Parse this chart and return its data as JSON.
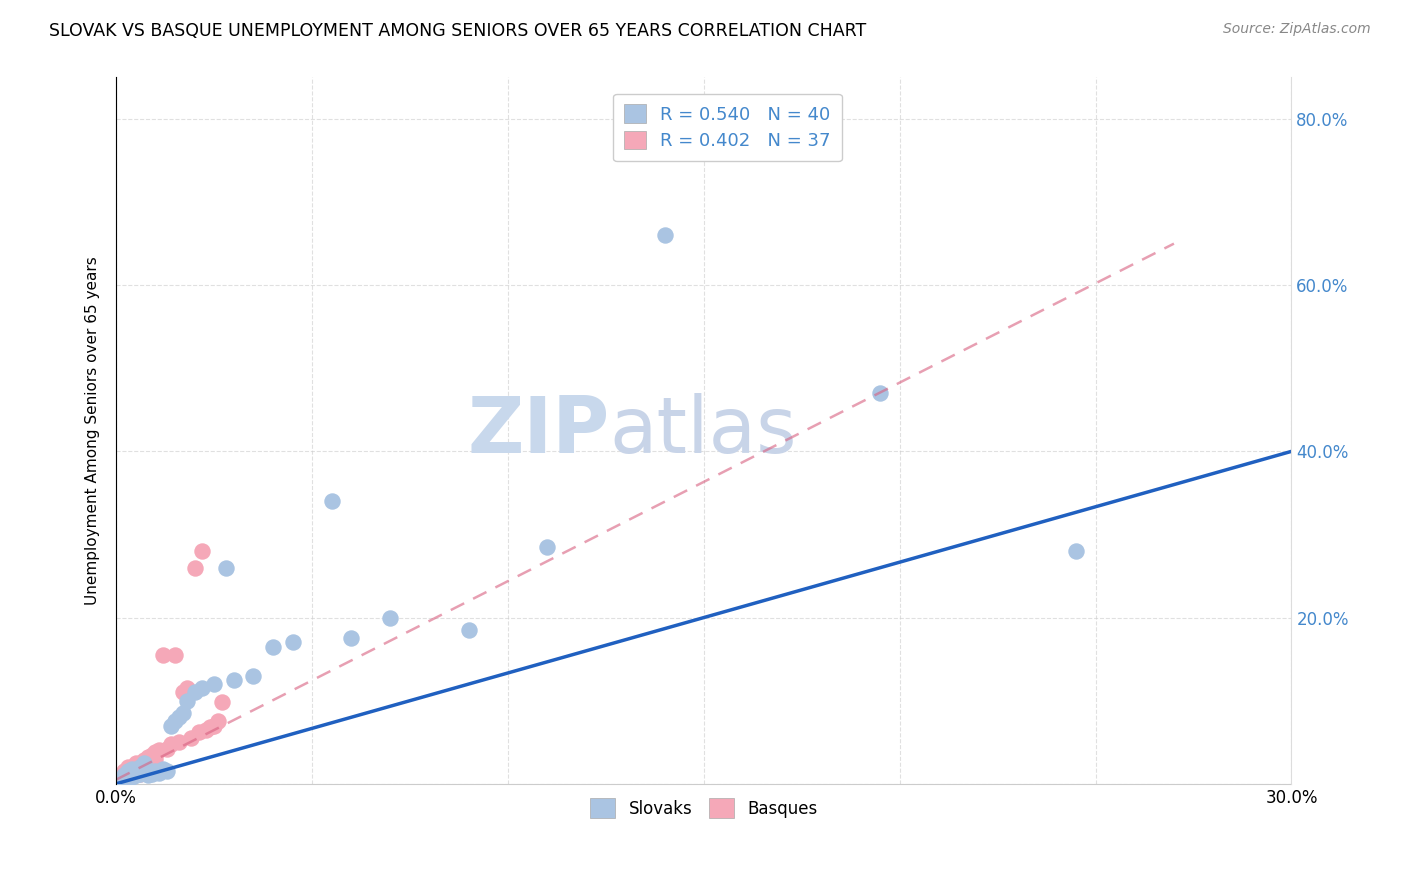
{
  "title": "SLOVAK VS BASQUE UNEMPLOYMENT AMONG SENIORS OVER 65 YEARS CORRELATION CHART",
  "source": "Source: ZipAtlas.com",
  "ylabel": "Unemployment Among Seniors over 65 years",
  "xlim": [
    0.0,
    0.3
  ],
  "ylim": [
    0.0,
    0.85
  ],
  "x_ticks": [
    0.0,
    0.05,
    0.1,
    0.15,
    0.2,
    0.25,
    0.3
  ],
  "x_tick_labels": [
    "0.0%",
    "",
    "",
    "",
    "",
    "",
    "30.0%"
  ],
  "y_ticks": [
    0.0,
    0.2,
    0.4,
    0.6,
    0.8
  ],
  "y_tick_labels": [
    "",
    "20.0%",
    "40.0%",
    "60.0%",
    "80.0%"
  ],
  "slovak_R": 0.54,
  "slovak_N": 40,
  "basque_R": 0.402,
  "basque_N": 37,
  "slovak_color": "#aac4e2",
  "basque_color": "#f5a8b8",
  "slovak_line_color": "#2060c0",
  "basque_line_color": "#d86080",
  "grid_color": "#cccccc",
  "watermark_zip_color": "#c8d8ec",
  "watermark_atlas_color": "#c8d4e8",
  "slovak_x": [
    0.001,
    0.002,
    0.002,
    0.003,
    0.003,
    0.004,
    0.004,
    0.005,
    0.005,
    0.006,
    0.006,
    0.007,
    0.007,
    0.008,
    0.009,
    0.01,
    0.011,
    0.012,
    0.013,
    0.014,
    0.015,
    0.016,
    0.017,
    0.018,
    0.02,
    0.022,
    0.025,
    0.028,
    0.03,
    0.035,
    0.04,
    0.045,
    0.055,
    0.06,
    0.07,
    0.09,
    0.11,
    0.14,
    0.195,
    0.245
  ],
  "slovak_y": [
    0.005,
    0.008,
    0.01,
    0.012,
    0.015,
    0.008,
    0.018,
    0.01,
    0.015,
    0.012,
    0.02,
    0.015,
    0.025,
    0.01,
    0.012,
    0.015,
    0.013,
    0.018,
    0.015,
    0.07,
    0.075,
    0.08,
    0.085,
    0.1,
    0.11,
    0.115,
    0.12,
    0.26,
    0.125,
    0.13,
    0.165,
    0.17,
    0.34,
    0.175,
    0.2,
    0.185,
    0.285,
    0.66,
    0.47,
    0.28
  ],
  "basque_x": [
    0.001,
    0.001,
    0.002,
    0.002,
    0.003,
    0.003,
    0.004,
    0.004,
    0.005,
    0.005,
    0.006,
    0.006,
    0.007,
    0.007,
    0.008,
    0.008,
    0.009,
    0.009,
    0.01,
    0.01,
    0.011,
    0.012,
    0.013,
    0.014,
    0.015,
    0.016,
    0.017,
    0.018,
    0.019,
    0.02,
    0.021,
    0.022,
    0.023,
    0.024,
    0.025,
    0.026,
    0.027
  ],
  "basque_y": [
    0.005,
    0.01,
    0.008,
    0.015,
    0.012,
    0.02,
    0.01,
    0.018,
    0.015,
    0.025,
    0.012,
    0.022,
    0.018,
    0.028,
    0.03,
    0.032,
    0.028,
    0.035,
    0.03,
    0.038,
    0.04,
    0.155,
    0.042,
    0.048,
    0.155,
    0.05,
    0.11,
    0.115,
    0.055,
    0.26,
    0.062,
    0.28,
    0.065,
    0.068,
    0.07,
    0.075,
    0.098
  ],
  "slovak_line_x0": 0.0,
  "slovak_line_y0": 0.0,
  "slovak_line_x1": 0.3,
  "slovak_line_y1": 0.4,
  "basque_line_x0": 0.0,
  "basque_line_y0": 0.005,
  "basque_line_x1": 0.27,
  "basque_line_y1": 0.65
}
